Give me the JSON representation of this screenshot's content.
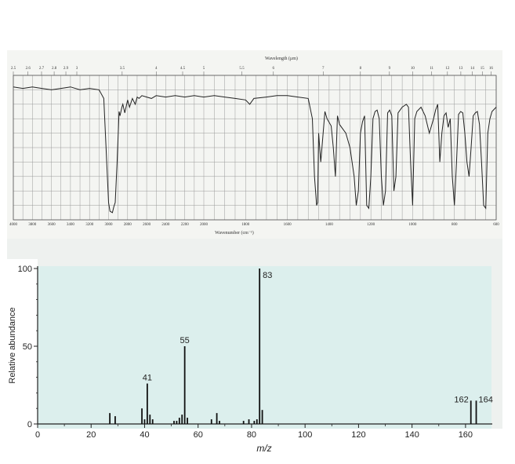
{
  "chart_data": [
    {
      "type": "line",
      "top_axis_label": "Wavelength (μm)",
      "bottom_axis_label": "Wavenumber (cm⁻¹)",
      "wavelength_ticks": [
        "2.5",
        "2.6",
        "2.7",
        "2.8",
        "2.9",
        "3",
        "3.5",
        "4",
        "4.5",
        "5",
        "5.5",
        "6",
        "7",
        "8",
        "9",
        "10",
        "11",
        "12",
        "13",
        "14",
        "15",
        "16"
      ],
      "wavenumber_ticks": [
        "4000",
        "3800",
        "3600",
        "3400",
        "3200",
        "3000",
        "2800",
        "2600",
        "2400",
        "2200",
        "2000",
        "1800",
        "1600",
        "1400",
        "1200",
        "1000",
        "800",
        "600"
      ],
      "xlim": [
        4000,
        600
      ],
      "ylabel": "",
      "series": [
        {
          "x": [
            4000,
            3900,
            3800,
            3700,
            3600,
            3500,
            3400,
            3300,
            3200,
            3100,
            3050,
            3000,
            2985,
            2960,
            2945,
            2930,
            2910,
            2890,
            2880,
            2860,
            2850,
            2830,
            2800,
            2780,
            2750,
            2720,
            2700,
            2680,
            2650,
            2600,
            2550,
            2500,
            2400,
            2300,
            2200,
            2100,
            2000,
            1950,
            1900,
            1850,
            1800,
            1780,
            1760,
            1700,
            1650,
            1600,
            1550,
            1500,
            1480,
            1470,
            1460,
            1455,
            1450,
            1440,
            1420,
            1410,
            1390,
            1380,
            1370,
            1360,
            1350,
            1340,
            1320,
            1300,
            1280,
            1270,
            1260,
            1250,
            1240,
            1230,
            1220,
            1210,
            1200,
            1190,
            1180,
            1170,
            1160,
            1150,
            1140,
            1130,
            1120,
            1110,
            1100,
            1090,
            1080,
            1070,
            1060,
            1050,
            1040,
            1030,
            1020,
            1010,
            1000,
            990,
            980,
            960,
            940,
            920,
            900,
            890,
            880,
            870,
            860,
            850,
            840,
            830,
            820,
            810,
            800,
            790,
            780,
            770,
            760,
            750,
            740,
            730,
            720,
            710,
            700,
            690,
            680,
            670,
            660,
            650,
            640,
            630,
            620,
            600
          ],
          "transmittance": [
            92,
            91,
            92,
            91,
            90,
            91,
            92,
            90,
            91,
            90,
            84,
            12,
            6,
            5,
            9,
            12,
            40,
            75,
            72,
            78,
            80,
            74,
            83,
            78,
            84,
            80,
            85,
            84,
            86,
            85,
            84,
            86,
            85,
            86,
            85,
            86,
            85,
            86,
            85,
            84,
            83,
            80,
            84,
            85,
            86,
            86,
            85,
            84,
            70,
            30,
            10,
            12,
            60,
            40,
            75,
            70,
            65,
            50,
            30,
            72,
            66,
            64,
            60,
            50,
            30,
            10,
            20,
            60,
            68,
            72,
            10,
            8,
            30,
            70,
            75,
            76,
            70,
            30,
            10,
            20,
            74,
            76,
            72,
            20,
            30,
            74,
            76,
            78,
            79,
            80,
            78,
            40,
            10,
            70,
            75,
            78,
            72,
            60,
            70,
            76,
            80,
            40,
            60,
            72,
            74,
            64,
            70,
            30,
            10,
            40,
            73,
            75,
            74,
            60,
            40,
            30,
            50,
            72,
            74,
            75,
            66,
            40,
            10,
            8,
            60,
            70,
            75,
            78
          ]
        }
      ]
    },
    {
      "type": "bar",
      "ylabel": "Relative abundance",
      "xlabel": "m/z",
      "xlim": [
        0,
        170
      ],
      "ylim": [
        0,
        100
      ],
      "x_ticks": [
        "0",
        "20",
        "40",
        "60",
        "80",
        "100",
        "120",
        "140",
        "160"
      ],
      "y_ticks": [
        "0",
        "50",
        "100"
      ],
      "peaks": [
        {
          "mz": 27,
          "abundance": 7
        },
        {
          "mz": 29,
          "abundance": 5
        },
        {
          "mz": 39,
          "abundance": 10
        },
        {
          "mz": 40,
          "abundance": 3
        },
        {
          "mz": 41,
          "abundance": 26
        },
        {
          "mz": 42,
          "abundance": 6
        },
        {
          "mz": 43,
          "abundance": 3
        },
        {
          "mz": 51,
          "abundance": 2
        },
        {
          "mz": 52,
          "abundance": 2
        },
        {
          "mz": 53,
          "abundance": 4
        },
        {
          "mz": 54,
          "abundance": 6
        },
        {
          "mz": 55,
          "abundance": 50
        },
        {
          "mz": 56,
          "abundance": 4
        },
        {
          "mz": 65,
          "abundance": 3
        },
        {
          "mz": 67,
          "abundance": 7
        },
        {
          "mz": 68,
          "abundance": 2
        },
        {
          "mz": 77,
          "abundance": 2
        },
        {
          "mz": 79,
          "abundance": 3
        },
        {
          "mz": 81,
          "abundance": 2
        },
        {
          "mz": 82,
          "abundance": 3
        },
        {
          "mz": 83,
          "abundance": 100
        },
        {
          "mz": 84,
          "abundance": 9
        },
        {
          "mz": 162,
          "abundance": 15
        },
        {
          "mz": 164,
          "abundance": 15
        }
      ],
      "peak_labels": [
        {
          "mz": 41,
          "text": "41"
        },
        {
          "mz": 55,
          "text": "55"
        },
        {
          "mz": 83,
          "text": "83"
        },
        {
          "mz": 162,
          "text": "162"
        },
        {
          "mz": 164,
          "text": "164"
        }
      ]
    }
  ]
}
